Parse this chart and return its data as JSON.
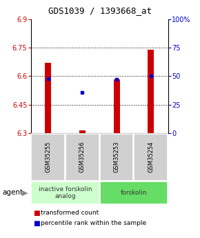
{
  "title": "GDS1039 / 1393668_at",
  "samples": [
    "GSM35255",
    "GSM35256",
    "GSM35253",
    "GSM35254"
  ],
  "bar_values": [
    6.67,
    6.315,
    6.585,
    6.74
  ],
  "bar_base": 6.3,
  "blue_pct": [
    48,
    36,
    47,
    50
  ],
  "ylim_left": [
    6.3,
    6.9
  ],
  "ylim_right": [
    0,
    100
  ],
  "yticks_left": [
    6.3,
    6.45,
    6.6,
    6.75,
    6.9
  ],
  "yticks_right": [
    0,
    25,
    50,
    75,
    100
  ],
  "ytick_labels_right": [
    "0",
    "25",
    "50",
    "75",
    "100%"
  ],
  "bar_color": "#cc0000",
  "blue_color": "#0000cc",
  "group_labels": [
    "inactive forskolin\nanalog",
    "forskolin"
  ],
  "group_ranges": [
    [
      0,
      2
    ],
    [
      2,
      4
    ]
  ],
  "group_colors": [
    "#ccffcc",
    "#66dd66"
  ],
  "legend_items": [
    "transformed count",
    "percentile rank within the sample"
  ],
  "legend_colors": [
    "#cc0000",
    "#0000cc"
  ],
  "bar_width": 0.18,
  "agent_label": "agent",
  "title_fontsize": 9,
  "tick_fontsize": 7,
  "sample_fontsize": 6,
  "group_fontsize": 6.5,
  "legend_fontsize": 6.5
}
